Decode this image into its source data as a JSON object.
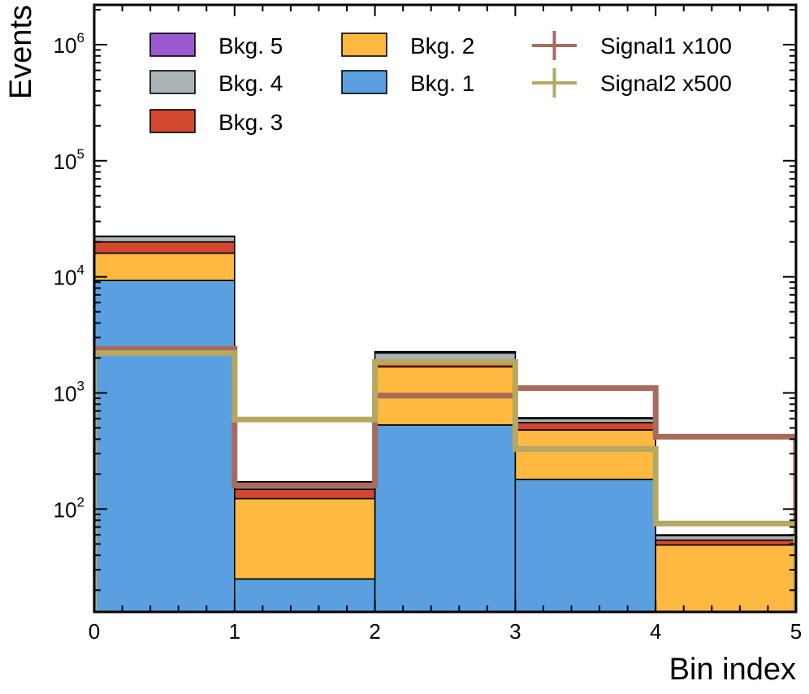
{
  "chart_data": {
    "type": "stacked-histogram",
    "title": "",
    "xlabel": "Bin index",
    "ylabel": "Events",
    "yscale": "log",
    "xlim": [
      0,
      5
    ],
    "ylim": [
      13,
      2200000
    ],
    "bin_edges": [
      0,
      1,
      2,
      3,
      4,
      5
    ],
    "x_ticks": [
      "0",
      "1",
      "2",
      "3",
      "4",
      "5"
    ],
    "y_ticks": [
      {
        "value": 100,
        "base": "10",
        "exp": "2"
      },
      {
        "value": 1000,
        "base": "10",
        "exp": "3"
      },
      {
        "value": 10000,
        "base": "10",
        "exp": "4"
      },
      {
        "value": 100000,
        "base": "10",
        "exp": "5"
      },
      {
        "value": 1000000,
        "base": "10",
        "exp": "6"
      }
    ],
    "stack": [
      {
        "name": "Bkg. 1",
        "color": "#5aa0e0",
        "values": [
          9300,
          25,
          530,
          180,
          8
        ]
      },
      {
        "name": "Bkg. 2",
        "color": "#ffb840",
        "values": [
          6700,
          98,
          1150,
          300,
          41
        ]
      },
      {
        "name": "Bkg. 3",
        "color": "#d2472f",
        "values": [
          4000,
          25,
          200,
          75,
          5
        ]
      },
      {
        "name": "Bkg. 4",
        "color": "#aab3b6",
        "values": [
          2200,
          20,
          330,
          45,
          5
        ]
      },
      {
        "name": "Bkg. 5",
        "color": "#9b59d0",
        "values": [
          200,
          4,
          60,
          12,
          1
        ]
      }
    ],
    "signals": [
      {
        "name": "Signal1 x100",
        "color": "#a86b5c",
        "values": [
          2400,
          160,
          950,
          1100,
          420
        ]
      },
      {
        "name": "Signal2 x500",
        "color": "#b5a862",
        "values": [
          2200,
          590,
          1850,
          330,
          75
        ]
      }
    ],
    "legend": {
      "placement": "top",
      "columns": [
        [
          "Bkg. 5",
          "Bkg. 4",
          "Bkg. 3"
        ],
        [
          "Bkg. 2",
          "Bkg. 1"
        ],
        [
          "Signal1 x100",
          "Signal2 x500"
        ]
      ]
    }
  }
}
